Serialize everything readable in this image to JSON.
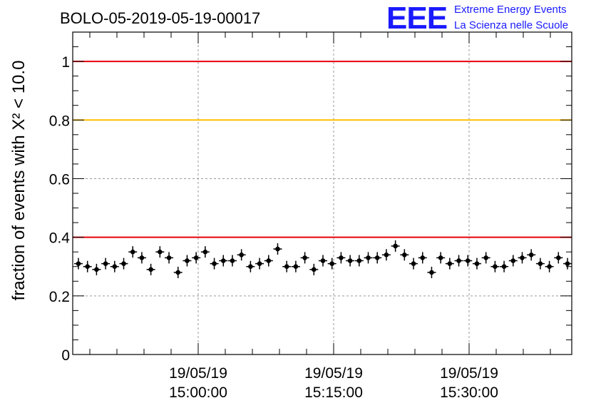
{
  "chart_data": {
    "type": "scatter",
    "title": "BOLO-05-2019-05-19-00017",
    "logo": {
      "mark": "EEE",
      "line1": "Extreme Energy Events",
      "line2": "La Scienza nelle Scuole"
    },
    "ylabel": "fraction of events with X² < 10.0",
    "ylim": [
      0,
      1.1
    ],
    "yticks": [
      "0",
      "0.2",
      "0.4",
      "0.6",
      "0.8",
      "1"
    ],
    "ytick_values": [
      0,
      0.2,
      0.4,
      0.6,
      0.8,
      1.0
    ],
    "xlim_minutes": [
      14.2,
      14.95
    ],
    "xticks": [
      {
        "date": "19/05/19",
        "time": "15:00:00",
        "minute": 15.0
      },
      {
        "date": "19/05/19",
        "time": "15:15:00",
        "minute": 15.25
      },
      {
        "date": "19/05/19",
        "time": "15:30:00",
        "minute": 15.5
      }
    ],
    "grid": true,
    "reference_lines": [
      {
        "y": 1.0,
        "color": "#e8000b"
      },
      {
        "y": 0.8,
        "color": "#ffc000"
      },
      {
        "y": 0.4,
        "color": "#e8000b"
      }
    ],
    "series": [
      {
        "color": "#000000",
        "values": [
          0.31,
          0.3,
          0.29,
          0.31,
          0.3,
          0.31,
          0.35,
          0.33,
          0.29,
          0.35,
          0.33,
          0.28,
          0.32,
          0.33,
          0.35,
          0.31,
          0.32,
          0.32,
          0.34,
          0.3,
          0.31,
          0.32,
          0.36,
          0.3,
          0.3,
          0.33,
          0.29,
          0.32,
          0.31,
          0.33,
          0.32,
          0.32,
          0.33,
          0.33,
          0.34,
          0.37,
          0.34,
          0.31,
          0.33,
          0.28,
          0.33,
          0.31,
          0.32,
          0.32,
          0.31,
          0.33,
          0.3,
          0.3,
          0.32,
          0.33,
          0.34,
          0.31,
          0.3,
          0.33,
          0.31
        ]
      }
    ]
  }
}
